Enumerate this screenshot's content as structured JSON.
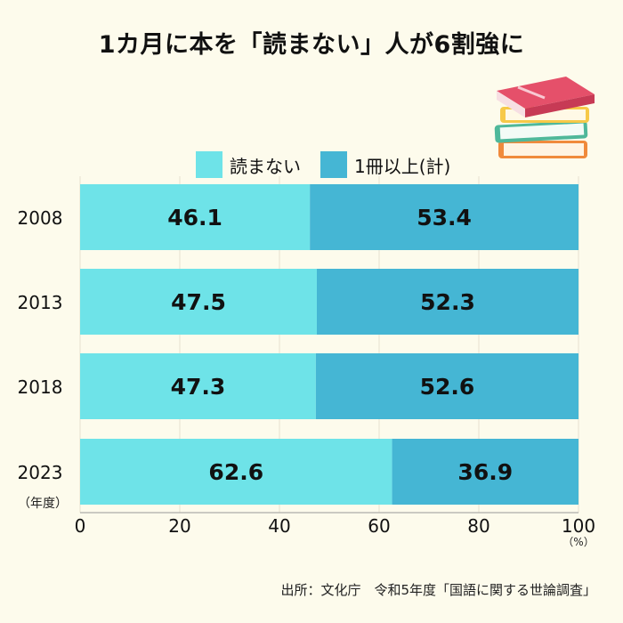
{
  "title": "1カ月に本を「読まない」人が6割強に",
  "source": "出所：文化庁　令和5年度「国語に関する世論調査」",
  "colors": {
    "background": "#fdfbec",
    "not_read": "#6ee3e8",
    "read": "#45b6d4"
  },
  "chart_data": {
    "type": "bar",
    "orientation": "horizontal",
    "stacked": true,
    "categories": [
      "2008",
      "2013",
      "2018",
      "2023"
    ],
    "category_unit": "（年度）",
    "series": [
      {
        "name": "読まない",
        "values": [
          46.1,
          47.5,
          47.3,
          62.6
        ],
        "color": "#6ee3e8"
      },
      {
        "name": "1冊以上(計)",
        "values": [
          53.4,
          52.3,
          52.6,
          36.9
        ],
        "color": "#45b6d4"
      }
    ],
    "xlim": [
      0,
      100
    ],
    "xticks": [
      "0",
      "20",
      "40",
      "60",
      "80",
      "100"
    ],
    "x_unit": "（%）",
    "grid": true,
    "legend": "top"
  }
}
